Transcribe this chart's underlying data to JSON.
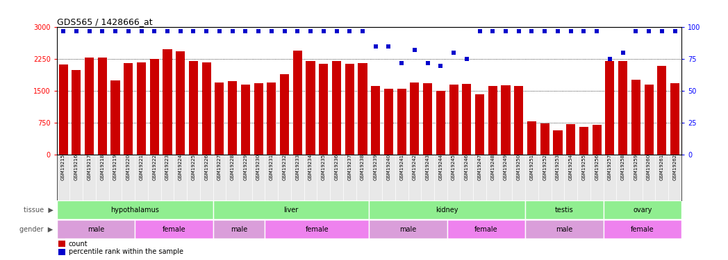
{
  "title": "GDS565 / 1428666_at",
  "samples": [
    "GSM19215",
    "GSM19216",
    "GSM19217",
    "GSM19218",
    "GSM19219",
    "GSM19220",
    "GSM19221",
    "GSM19222",
    "GSM19223",
    "GSM19224",
    "GSM19225",
    "GSM19226",
    "GSM19227",
    "GSM19228",
    "GSM19229",
    "GSM19230",
    "GSM19231",
    "GSM19232",
    "GSM19233",
    "GSM19234",
    "GSM19235",
    "GSM19236",
    "GSM19237",
    "GSM19238",
    "GSM19239",
    "GSM19240",
    "GSM19241",
    "GSM19242",
    "GSM19243",
    "GSM19244",
    "GSM19245",
    "GSM19246",
    "GSM19247",
    "GSM19248",
    "GSM19249",
    "GSM19250",
    "GSM19251",
    "GSM19252",
    "GSM19253",
    "GSM19254",
    "GSM19255",
    "GSM19256",
    "GSM19257",
    "GSM19258",
    "GSM19259",
    "GSM19260",
    "GSM19261",
    "GSM19262"
  ],
  "counts": [
    2130,
    2000,
    2280,
    2290,
    1750,
    2150,
    2170,
    2260,
    2480,
    2440,
    2200,
    2180,
    1700,
    1730,
    1650,
    1680,
    1700,
    1900,
    2450,
    2200,
    2140,
    2200,
    2140,
    2160,
    1620,
    1550,
    1560,
    1700,
    1680,
    1510,
    1650,
    1660,
    1430,
    1620,
    1640,
    1620,
    780,
    740,
    570,
    720,
    650,
    700,
    2200,
    2200,
    1760,
    1650,
    2100,
    1680
  ],
  "percentile_vals": [
    97,
    97,
    97,
    97,
    97,
    97,
    97,
    97,
    97,
    97,
    97,
    97,
    97,
    97,
    97,
    97,
    97,
    97,
    97,
    97,
    97,
    97,
    97,
    97,
    85,
    85,
    72,
    82,
    72,
    70,
    80,
    75,
    97,
    97,
    97,
    97,
    97,
    97,
    97,
    97,
    97,
    97,
    75,
    80,
    97,
    97,
    97,
    97
  ],
  "tissue_groups": [
    {
      "label": "hypothalamus",
      "start": 0,
      "end": 11
    },
    {
      "label": "liver",
      "start": 12,
      "end": 23
    },
    {
      "label": "kidney",
      "start": 24,
      "end": 35
    },
    {
      "label": "testis",
      "start": 36,
      "end": 41
    },
    {
      "label": "ovary",
      "start": 42,
      "end": 47
    }
  ],
  "gender_groups": [
    {
      "label": "male",
      "start": 0,
      "end": 5
    },
    {
      "label": "female",
      "start": 6,
      "end": 11
    },
    {
      "label": "male",
      "start": 12,
      "end": 15
    },
    {
      "label": "female",
      "start": 16,
      "end": 23
    },
    {
      "label": "male",
      "start": 24,
      "end": 29
    },
    {
      "label": "female",
      "start": 30,
      "end": 35
    },
    {
      "label": "male",
      "start": 36,
      "end": 41
    },
    {
      "label": "female",
      "start": 42,
      "end": 47
    }
  ],
  "bar_color": "#CC0000",
  "dot_color": "#0000CC",
  "tissue_color": "#90EE90",
  "male_color": "#DA9EDA",
  "female_color": "#EE82EE",
  "left_ylim": [
    0,
    3000
  ],
  "right_ylim": [
    0,
    100
  ],
  "left_yticks": [
    0,
    750,
    1500,
    2250,
    3000
  ],
  "right_yticks": [
    0,
    25,
    50,
    75,
    100
  ],
  "gridlines": [
    750,
    1500,
    2250
  ],
  "bg_color": "#ffffff",
  "xtick_bg": "#e8e8e8"
}
